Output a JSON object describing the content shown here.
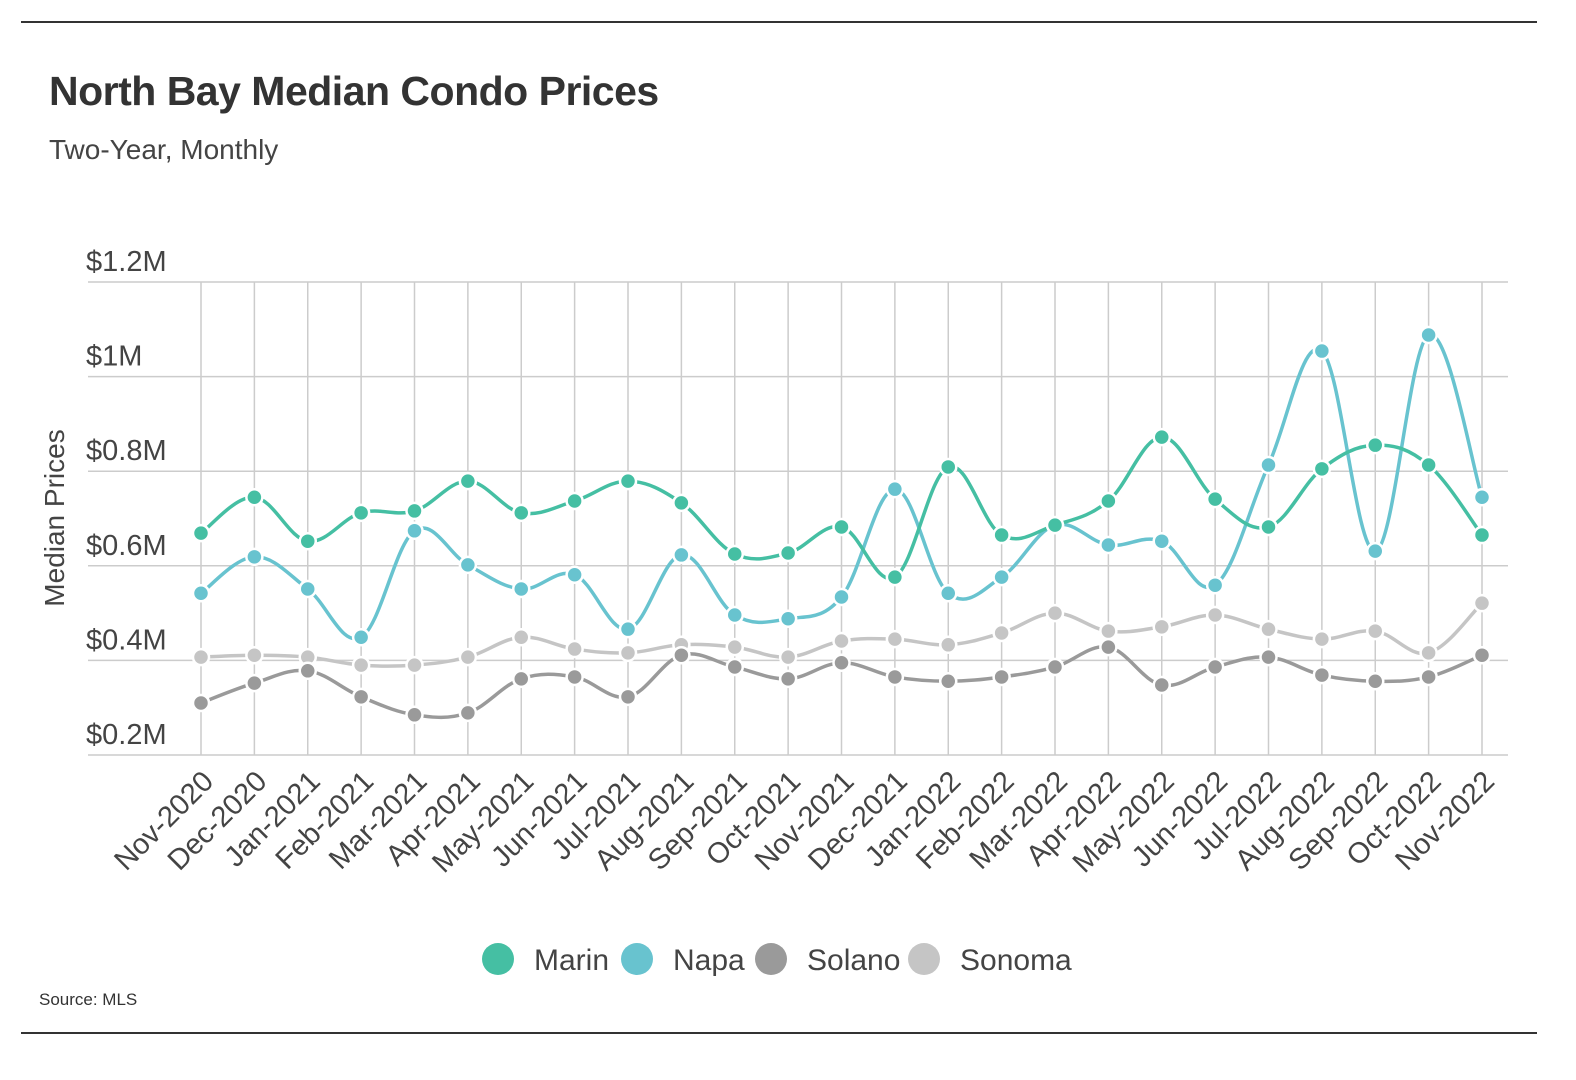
{
  "chart_data": {
    "type": "line",
    "title": "North Bay Median Condo Prices",
    "subtitle": "Two-Year, Monthly",
    "xlabel": "",
    "ylabel": "Median Prices",
    "source": "Source:  MLS",
    "ylim": [
      0.2,
      1.2
    ],
    "yticks": [
      {
        "value": 1.2,
        "label": "$1.2M"
      },
      {
        "value": 1.0,
        "label": "$1M"
      },
      {
        "value": 0.8,
        "label": "$0.8M"
      },
      {
        "value": 0.6,
        "label": "$0.6M"
      },
      {
        "value": 0.4,
        "label": "$0.4M"
      },
      {
        "value": 0.2,
        "label": "$0.2M"
      }
    ],
    "grid": true,
    "legend_position": "bottom-center",
    "categories": [
      "Nov-2020",
      "Dec-2020",
      "Jan-2021",
      "Feb-2021",
      "Mar-2021",
      "Apr-2021",
      "May-2021",
      "Jun-2021",
      "Jul-2021",
      "Aug-2021",
      "Sep-2021",
      "Oct-2021",
      "Nov-2021",
      "Dec-2021",
      "Jan-2022",
      "Feb-2022",
      "Mar-2022",
      "Apr-2022",
      "May-2022",
      "Jun-2022",
      "Jul-2022",
      "Aug-2022",
      "Sep-2022",
      "Oct-2022",
      "Nov-2022"
    ],
    "series": [
      {
        "name": "Marin",
        "color": "#45bfa3",
        "values": [
          0.669,
          0.745,
          0.652,
          0.712,
          0.716,
          0.779,
          0.712,
          0.737,
          0.779,
          0.733,
          0.625,
          0.627,
          0.682,
          0.576,
          0.809,
          0.665,
          0.686,
          0.737,
          0.872,
          0.741,
          0.682,
          0.805,
          0.855,
          0.813,
          0.665
        ]
      },
      {
        "name": "Napa",
        "color": "#68c3cf",
        "values": [
          0.542,
          0.619,
          0.551,
          0.449,
          0.674,
          0.602,
          0.551,
          0.581,
          0.466,
          0.623,
          0.496,
          0.488,
          0.534,
          0.762,
          0.542,
          0.576,
          0.686,
          0.644,
          0.652,
          0.559,
          0.813,
          1.054,
          0.631,
          1.088,
          0.745
        ]
      },
      {
        "name": "Solano",
        "color": "#9a9a9a",
        "values": [
          0.31,
          0.352,
          0.378,
          0.323,
          0.285,
          0.289,
          0.361,
          0.365,
          0.323,
          0.411,
          0.386,
          0.361,
          0.395,
          0.365,
          0.356,
          0.365,
          0.386,
          0.428,
          0.348,
          0.386,
          0.407,
          0.369,
          0.356,
          0.365,
          0.411
        ]
      },
      {
        "name": "Sonoma",
        "color": "#c5c5c5",
        "values": [
          0.407,
          0.411,
          0.407,
          0.39,
          0.39,
          0.407,
          0.449,
          0.424,
          0.416,
          0.433,
          0.428,
          0.407,
          0.441,
          0.445,
          0.433,
          0.458,
          0.5,
          0.462,
          0.471,
          0.496,
          0.466,
          0.445,
          0.462,
          0.416,
          0.521
        ]
      }
    ]
  }
}
